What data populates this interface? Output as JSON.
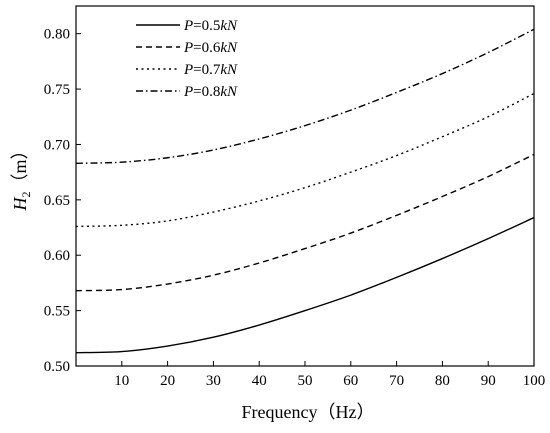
{
  "chart_data": {
    "type": "line",
    "xlabel": "Frequency（Hz）",
    "ylabel_main": "H",
    "ylabel_sub": "2",
    "ylabel_unit": "（m）",
    "xlim": [
      0,
      100
    ],
    "ylim": [
      0.5,
      0.825
    ],
    "x_ticks": [
      10,
      20,
      30,
      40,
      50,
      60,
      70,
      80,
      90,
      100
    ],
    "y_ticks": [
      0.5,
      0.55,
      0.6,
      0.65,
      0.7,
      0.75,
      0.8
    ],
    "x_tick_labels": [
      "10",
      "20",
      "30",
      "40",
      "50",
      "60",
      "70",
      "80",
      "90",
      "100"
    ],
    "y_tick_labels": [
      "0.50",
      "0.55",
      "0.60",
      "0.65",
      "0.70",
      "0.75",
      "0.80"
    ],
    "grid": false,
    "legend_position": "top-left",
    "x": [
      0,
      10,
      20,
      30,
      40,
      50,
      60,
      70,
      80,
      90,
      100
    ],
    "series": [
      {
        "name_var": "P",
        "name_val": "=0.5",
        "name_unit": "kN",
        "dash": "solid",
        "values": [
          0.512,
          0.513,
          0.518,
          0.526,
          0.537,
          0.55,
          0.564,
          0.58,
          0.597,
          0.615,
          0.634
        ]
      },
      {
        "name_var": "P",
        "name_val": "=0.6",
        "name_unit": "kN",
        "dash": "dashed",
        "values": [
          0.568,
          0.569,
          0.574,
          0.582,
          0.593,
          0.606,
          0.62,
          0.636,
          0.653,
          0.671,
          0.691
        ]
      },
      {
        "name_var": "P",
        "name_val": "=0.7",
        "name_unit": "kN",
        "dash": "dotted",
        "values": [
          0.626,
          0.627,
          0.631,
          0.639,
          0.649,
          0.661,
          0.675,
          0.69,
          0.707,
          0.725,
          0.746
        ]
      },
      {
        "name_var": "P",
        "name_val": "=0.8",
        "name_unit": "kN",
        "dash": "dashdot",
        "values": [
          0.683,
          0.684,
          0.688,
          0.695,
          0.705,
          0.717,
          0.731,
          0.747,
          0.764,
          0.783,
          0.804
        ]
      }
    ]
  }
}
